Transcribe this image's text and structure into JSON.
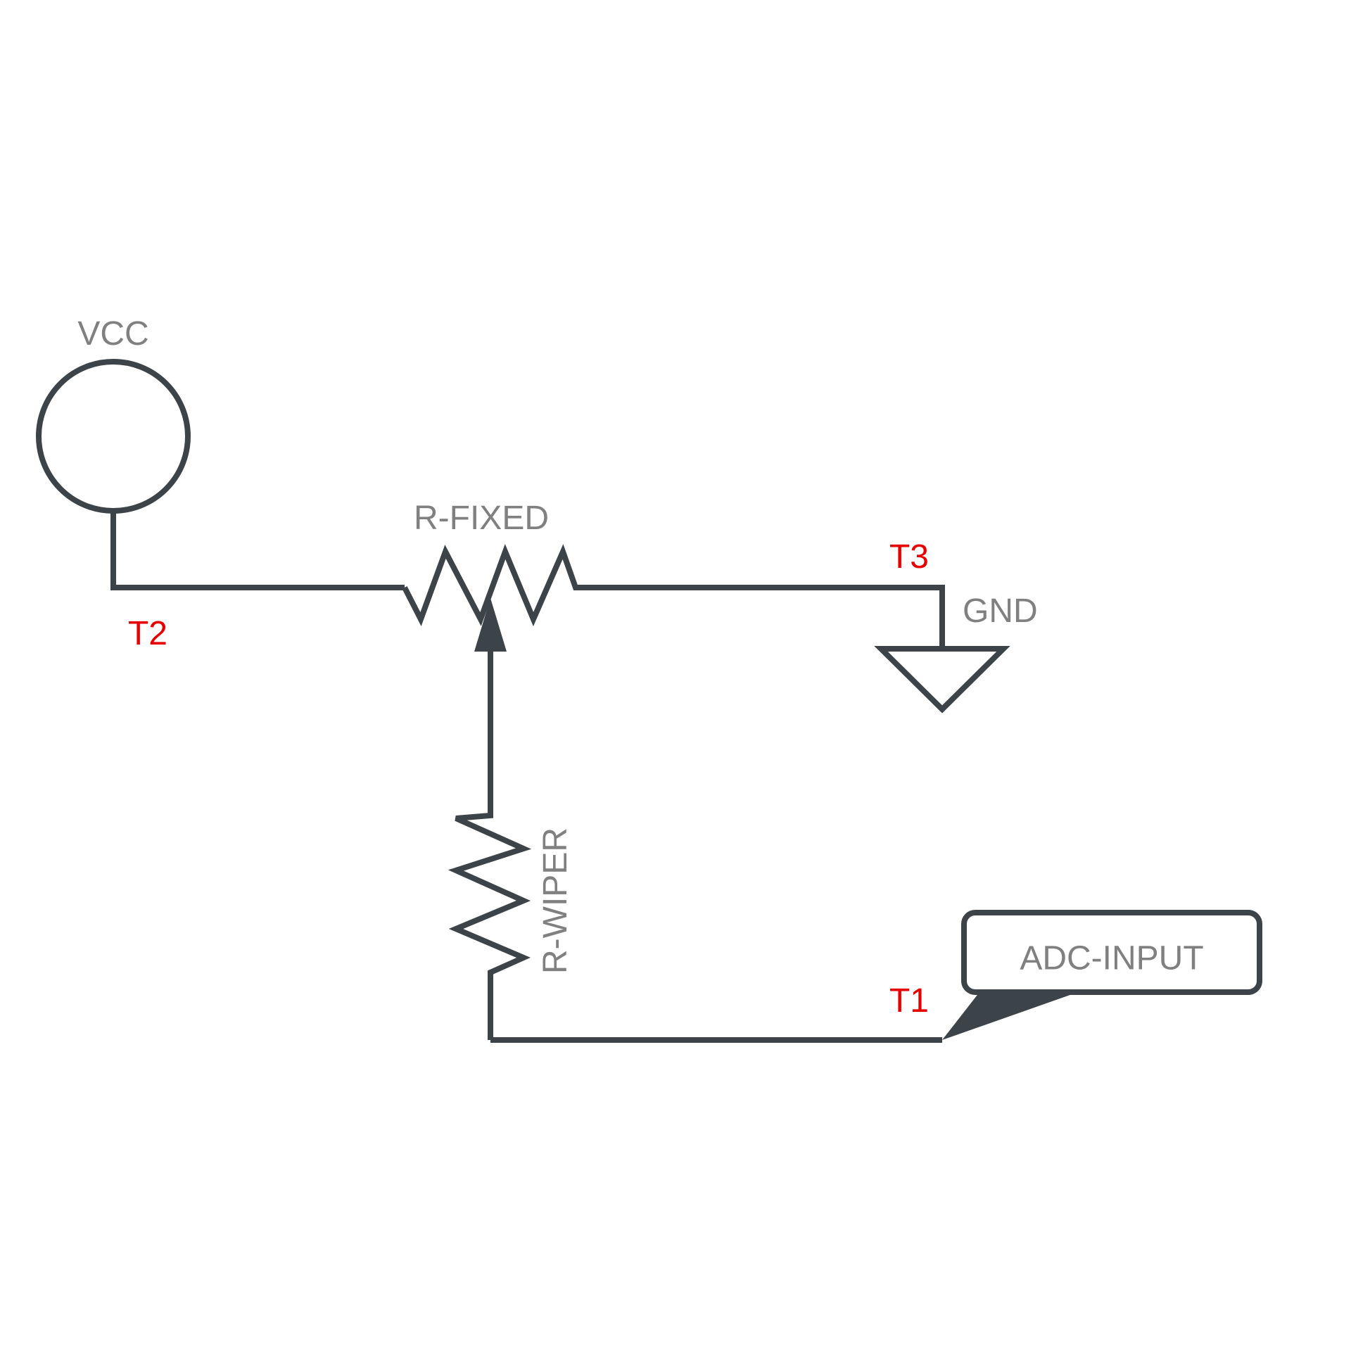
{
  "components": {
    "vcc": {
      "label": "VCC"
    },
    "r_fixed": {
      "label": "R-FIXED"
    },
    "r_wiper": {
      "label": "R-WIPER"
    },
    "gnd": {
      "label": "GND"
    },
    "adc_input": {
      "label": "ADC-INPUT"
    }
  },
  "terminals": {
    "t1": "T1",
    "t2": "T2",
    "t3": "T3"
  },
  "colors": {
    "wire": "#3d4449",
    "component_label": "#808080",
    "terminal_label": "#e60000",
    "background": "#ffffff"
  }
}
